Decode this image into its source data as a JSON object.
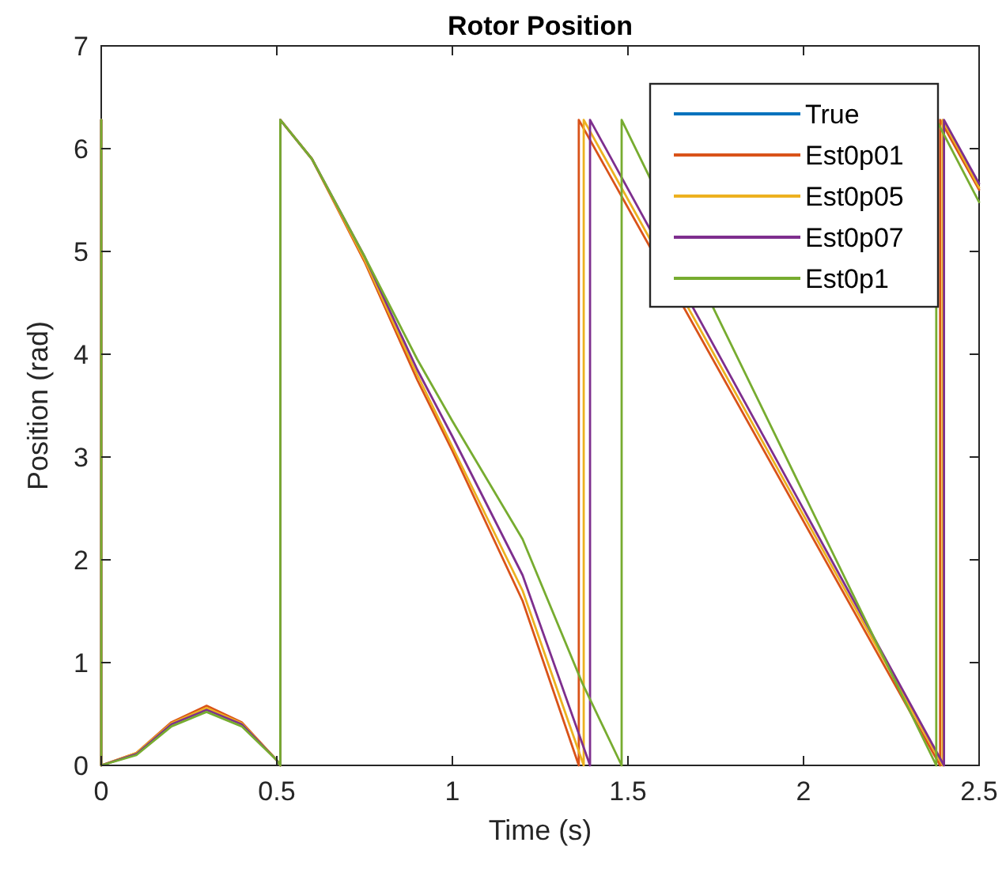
{
  "chart_data": {
    "type": "line",
    "title": "Rotor Position",
    "xlabel": "Time (s)",
    "ylabel": "Position (rad)",
    "xlim": [
      0,
      2.5
    ],
    "xticks": [
      0,
      0.5,
      1,
      1.5,
      2,
      2.5
    ],
    "ylim": [
      0,
      7
    ],
    "yticks": [
      0,
      1,
      2,
      3,
      4,
      5,
      6,
      7
    ],
    "grid": false,
    "legend": "top right",
    "line_style": "solid",
    "marker": "none",
    "series": [
      {
        "name": "True",
        "color": "#0072bd"
      },
      {
        "name": "Est0p01",
        "color": "#d95319",
        "x": [
          0,
          0,
          0.1,
          0.2,
          0.3,
          0.4,
          0.5,
          0.51,
          0.51,
          0.6,
          0.75,
          0.9,
          1.0,
          1.2,
          1.36,
          1.36,
          2.389,
          2.389,
          2.5
        ],
        "values": [
          6.28,
          0,
          0.12,
          0.42,
          0.58,
          0.42,
          0.05,
          0,
          6.28,
          5.9,
          4.9,
          3.75,
          3.06,
          1.6,
          0,
          6.28,
          0,
          6.28,
          5.6
        ]
      },
      {
        "name": "Est0p05",
        "color": "#edb120",
        "x": [
          0,
          0,
          0.1,
          0.2,
          0.3,
          0.4,
          0.5,
          0.51,
          0.51,
          0.6,
          0.75,
          0.9,
          1.0,
          1.2,
          1.374,
          1.374,
          2.396,
          2.396,
          2.5
        ],
        "values": [
          6.28,
          0,
          0.12,
          0.41,
          0.56,
          0.41,
          0.05,
          0,
          6.28,
          5.9,
          4.92,
          3.8,
          3.1,
          1.7,
          0,
          6.28,
          0,
          6.28,
          5.62
        ]
      },
      {
        "name": "Est0p07",
        "color": "#7e2f8e",
        "x": [
          0,
          0,
          0.1,
          0.2,
          0.3,
          0.4,
          0.5,
          0.51,
          0.51,
          0.6,
          0.75,
          0.9,
          1.0,
          1.2,
          1.392,
          1.392,
          2.4,
          2.4,
          2.5
        ],
        "values": [
          6.28,
          0,
          0.11,
          0.4,
          0.54,
          0.4,
          0.05,
          0,
          6.28,
          5.9,
          4.95,
          3.85,
          3.2,
          1.85,
          0,
          6.28,
          0,
          6.28,
          5.66
        ]
      },
      {
        "name": "Est0p1",
        "color": "#77ac30",
        "x": [
          0,
          0,
          0.1,
          0.2,
          0.3,
          0.4,
          0.5,
          0.51,
          0.51,
          0.6,
          0.75,
          0.9,
          1.0,
          1.2,
          1.37,
          1.482,
          1.482,
          2.378,
          2.378,
          2.5
        ],
        "values": [
          6.28,
          0,
          0.1,
          0.38,
          0.52,
          0.38,
          0.05,
          0,
          6.28,
          5.9,
          4.95,
          3.95,
          3.35,
          2.2,
          0.8,
          0,
          6.28,
          0,
          6.28,
          5.48
        ]
      }
    ]
  }
}
